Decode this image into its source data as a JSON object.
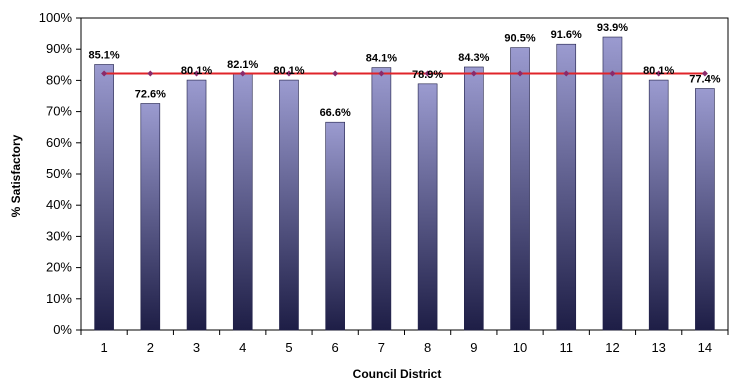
{
  "chart_data": {
    "type": "bar",
    "categories": [
      "1",
      "2",
      "3",
      "4",
      "5",
      "6",
      "7",
      "8",
      "9",
      "10",
      "11",
      "12",
      "13",
      "14"
    ],
    "series": [
      {
        "values": [
          85.1,
          72.6,
          80.1,
          82.1,
          80.1,
          66.6,
          84.1,
          78.9,
          84.3,
          90.5,
          91.6,
          93.9,
          80.1,
          77.4
        ],
        "labels": [
          "85.1%",
          "72.6%",
          "80.1%",
          "82.1%",
          "80.1%",
          "66.6%",
          "84.1%",
          "78.9%",
          "84.3%",
          "90.5%",
          "91.6%",
          "93.9%",
          "80.1%",
          "77.4%"
        ],
        "color_top": "#9b9bd0",
        "color_bottom": "#1e1e46"
      },
      {
        "type": "line",
        "values": [
          82.2,
          82.2,
          82.2,
          82.2,
          82.2,
          82.2,
          82.2,
          82.2,
          82.2,
          82.2,
          82.2,
          82.2,
          82.2,
          82.2
        ],
        "color": "#e0242a",
        "marker_color": "#8a2a6a"
      }
    ],
    "ylim": [
      0,
      100
    ],
    "yticks": [
      "0%",
      "10%",
      "20%",
      "30%",
      "40%",
      "50%",
      "60%",
      "70%",
      "80%",
      "90%",
      "100%"
    ],
    "ytick_values": [
      0,
      10,
      20,
      30,
      40,
      50,
      60,
      70,
      80,
      90,
      100
    ],
    "xlabel": "Council District",
    "ylabel": "% Satisfactory",
    "grid": false,
    "legend": "none"
  }
}
